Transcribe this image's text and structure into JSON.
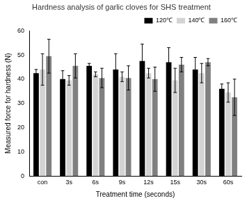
{
  "chart_data": {
    "type": "bar",
    "title": "Hardness analysis of garlic cloves for SHS treatment",
    "x_label": "Treatment time (seconds)",
    "y_label": "Measured force for hardness (N)",
    "categories": [
      "con",
      "3s",
      "6s",
      "9s",
      "12s",
      "15s",
      "30s",
      "60s"
    ],
    "series": [
      {
        "name": "120℃",
        "color": "#000000",
        "values": [
          42.5,
          40,
          45.5,
          44,
          47.5,
          47,
          44,
          36
        ],
        "errors": [
          1.5,
          3.5,
          1,
          6.5,
          7,
          6,
          5,
          2
        ]
      },
      {
        "name": "140℃",
        "color": "#d3d3d3",
        "values": [
          44,
          39.5,
          42,
          41,
          42.5,
          39.5,
          42.5,
          34.5
        ],
        "errors": [
          6.5,
          2,
          1,
          2,
          2,
          5,
          4,
          4
        ]
      },
      {
        "name": "160℃",
        "color": "#808080",
        "values": [
          49.5,
          45.5,
          40.5,
          40.5,
          40,
          46,
          47,
          32.5
        ],
        "errors": [
          7,
          5,
          4,
          5,
          5,
          3,
          1.5,
          7.5
        ]
      }
    ],
    "ylim": [
      0,
      60
    ],
    "yticks": [
      0,
      10,
      20,
      30,
      40,
      50,
      60
    ],
    "grid": false,
    "legend": "top-right"
  }
}
